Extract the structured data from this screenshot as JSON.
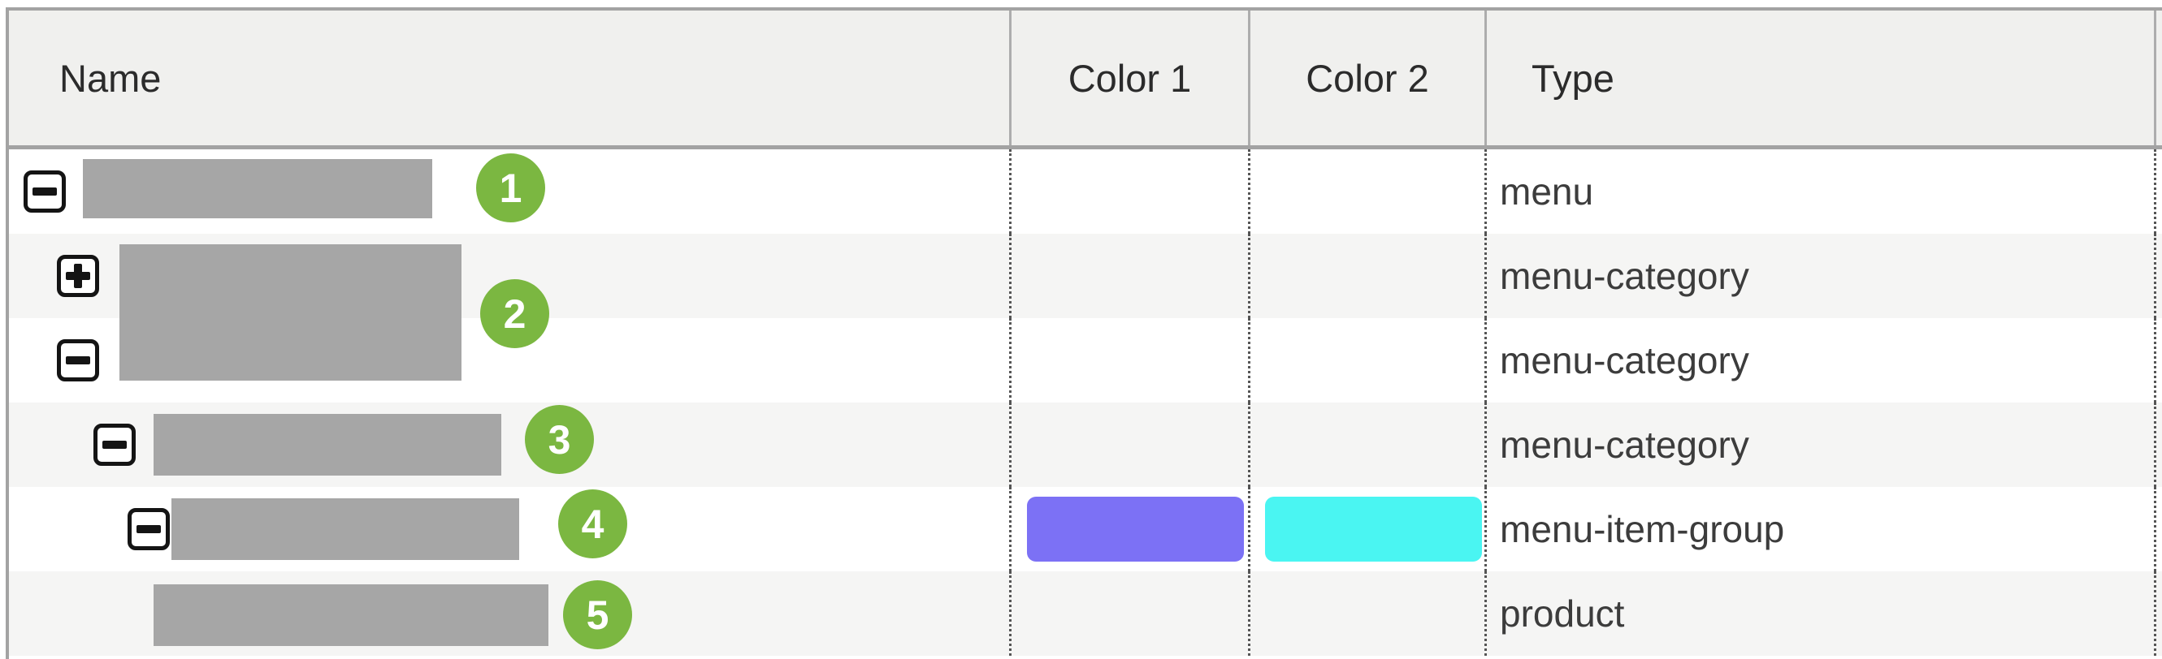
{
  "table": {
    "columns": [
      {
        "label": "Name"
      },
      {
        "label": "Color 1"
      },
      {
        "label": "Color 2"
      },
      {
        "label": "Type"
      }
    ],
    "rows": [
      {
        "type": "menu",
        "toggle": "minus",
        "indent_level": 0
      },
      {
        "type": "menu-category",
        "toggle": "plus",
        "indent_level": 1
      },
      {
        "type": "menu-category",
        "toggle": "minus",
        "indent_level": 1
      },
      {
        "type": "menu-category",
        "toggle": "minus",
        "indent_level": 2
      },
      {
        "type": "menu-item-group",
        "toggle": "minus",
        "indent_level": 3,
        "color1": "#7c71f5",
        "color2": "#4af5f2"
      },
      {
        "type": "product",
        "indent_level": 4
      }
    ]
  },
  "annotations": {
    "badge_color": "#7bb741",
    "redaction_color": "#a6a6a6",
    "badges": [
      {
        "label": "1"
      },
      {
        "label": "2"
      },
      {
        "label": "3"
      },
      {
        "label": "4"
      },
      {
        "label": "5"
      }
    ]
  }
}
